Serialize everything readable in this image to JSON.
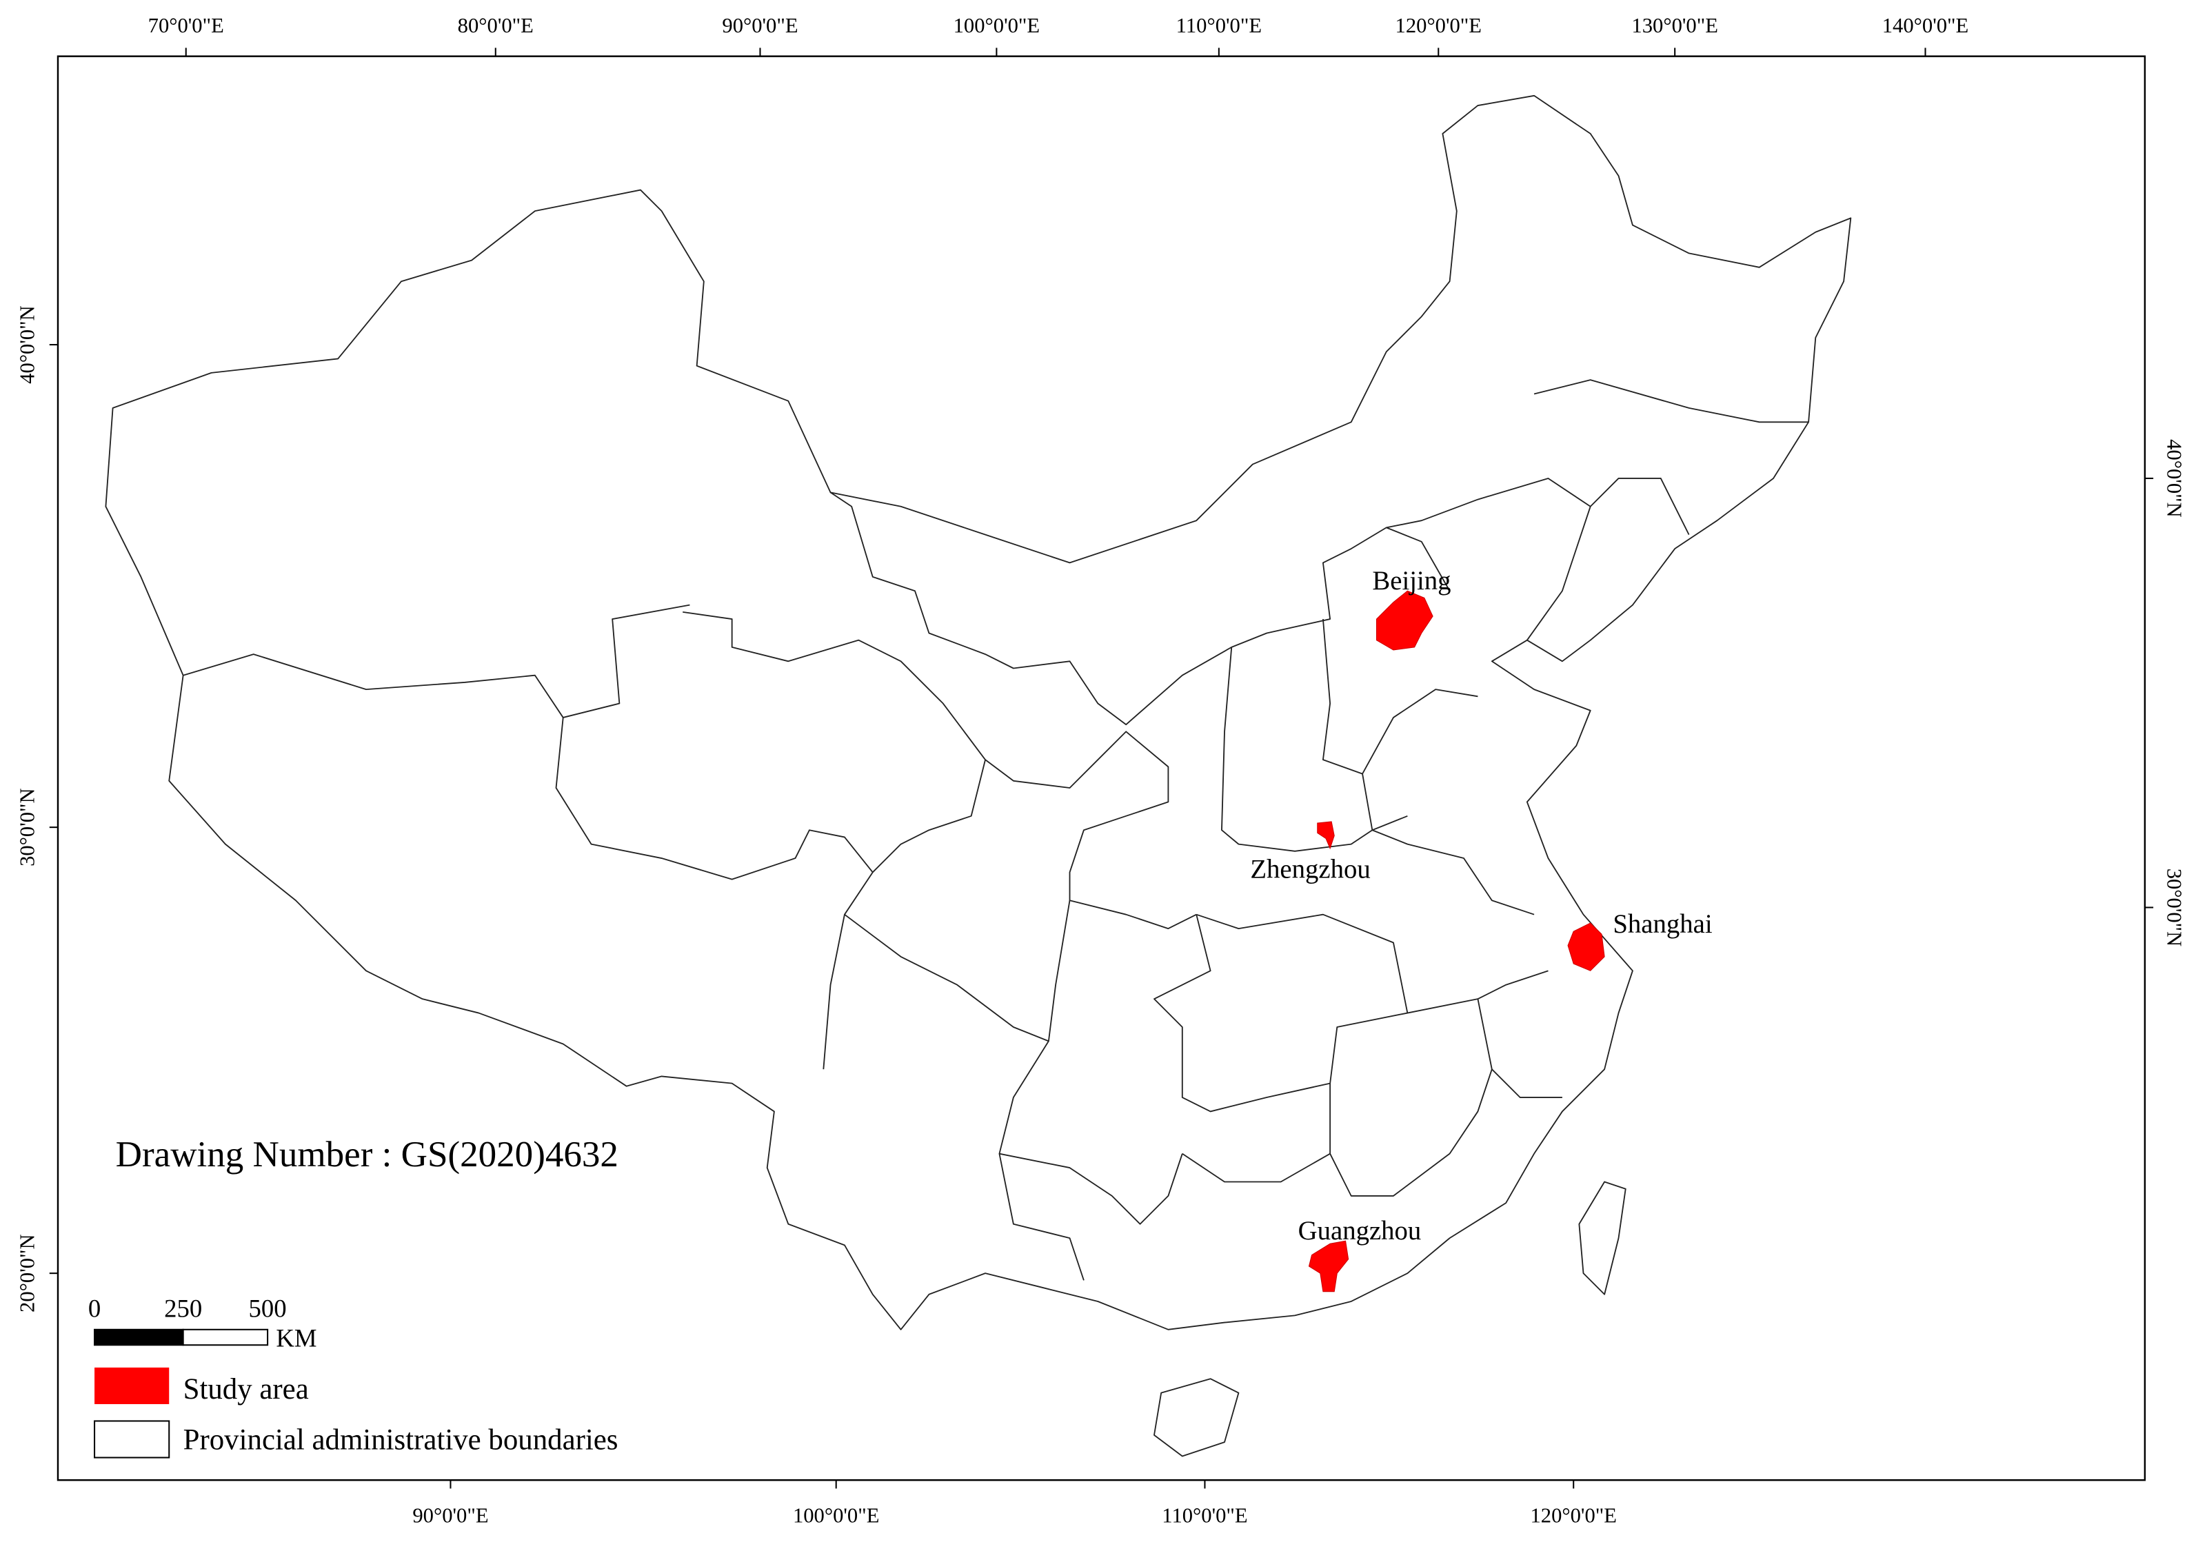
{
  "graticule": {
    "top": [
      "70°0'0\"E",
      "80°0'0\"E",
      "90°0'0\"E",
      "100°0'0\"E",
      "110°0'0\"E",
      "120°0'0\"E",
      "130°0'0\"E",
      "140°0'0\"E"
    ],
    "bottom": [
      "90°0'0\"E",
      "100°0'0\"E",
      "110°0'0\"E",
      "120°0'0\"E"
    ],
    "left": [
      "40°0'0\"N",
      "30°0'0\"N",
      "20°0'0\"N"
    ],
    "right": [
      "40°0'0\"N",
      "30°0'0\"N"
    ]
  },
  "cities": [
    "Beijing",
    "Zhengzhou",
    "Shanghai",
    "Guangzhou"
  ],
  "drawing_number": "Drawing Number : GS(2020)4632",
  "scale_bar": {
    "labels": [
      "0",
      "250",
      "500"
    ],
    "unit": "KM"
  },
  "legend": [
    "Study area",
    "Provincial administrative boundaries"
  ]
}
